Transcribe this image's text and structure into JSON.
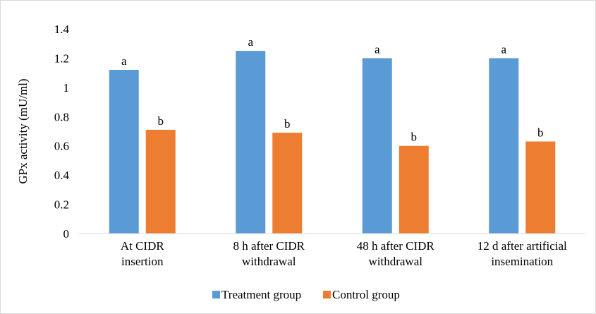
{
  "chart_data": {
    "type": "bar",
    "title": "",
    "xlabel": "",
    "ylabel": "GPx activity (mU/ml)",
    "ylim": [
      0,
      1.4
    ],
    "yticks": [
      "0",
      "0.2",
      "0.4",
      "0.6",
      "0.8",
      "1",
      "1.2",
      "1.4"
    ],
    "grid": false,
    "legend_position": "bottom",
    "categories": [
      [
        "At CIDR",
        "insertion"
      ],
      [
        "8 h after CIDR",
        "withdrawal"
      ],
      [
        "48 h after CIDR",
        "withdrawal"
      ],
      [
        "12 d after artificial",
        "insemination"
      ]
    ],
    "series": [
      {
        "name": "Treatment group",
        "color": "#5b9bd5",
        "values": [
          1.12,
          1.25,
          1.2,
          1.2
        ],
        "labels": [
          "a",
          "a",
          "a",
          "a"
        ]
      },
      {
        "name": "Control group",
        "color": "#ed7d31",
        "values": [
          0.71,
          0.69,
          0.6,
          0.63
        ],
        "labels": [
          "b",
          "b",
          "b",
          "b"
        ]
      }
    ]
  }
}
